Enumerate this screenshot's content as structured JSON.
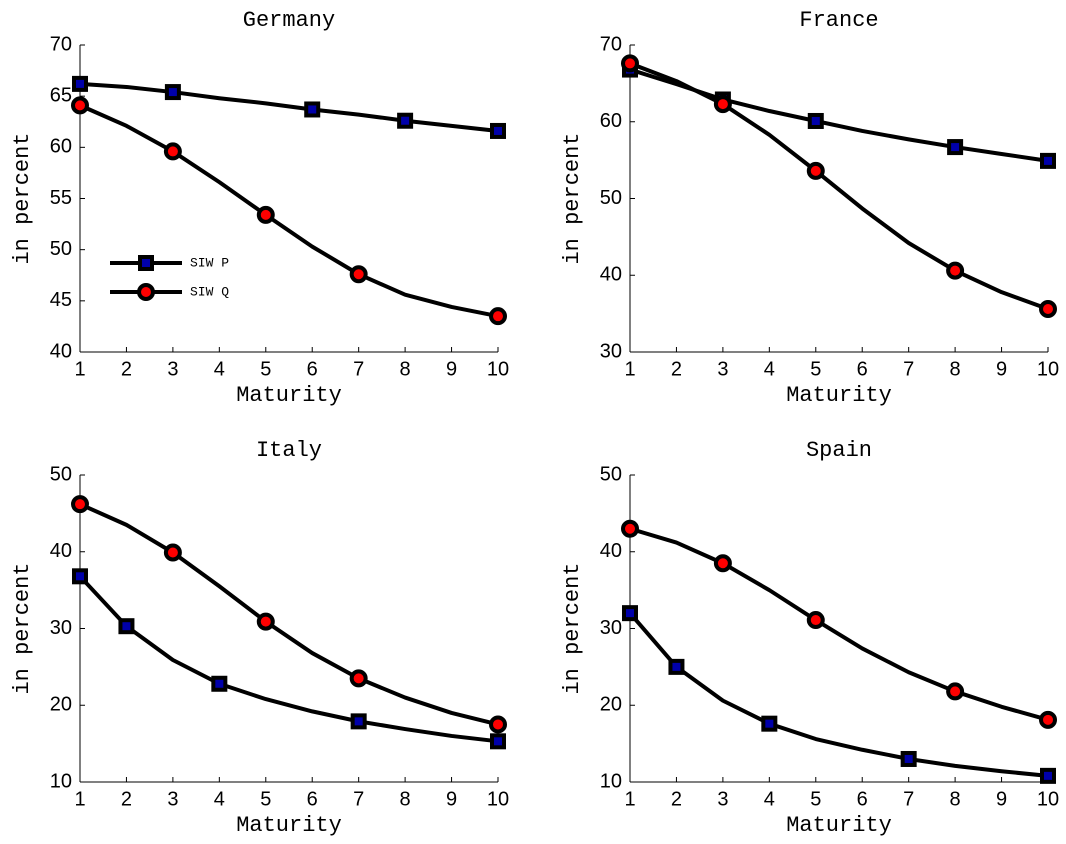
{
  "chart_data": [
    {
      "type": "line",
      "title": "Germany",
      "xlabel": "Maturity",
      "ylabel": "in percent",
      "x": [
        1,
        2,
        3,
        4,
        5,
        6,
        7,
        8,
        9,
        10
      ],
      "xlim": [
        1,
        10
      ],
      "xticks": [
        1,
        2,
        3,
        4,
        5,
        6,
        7,
        8,
        9,
        10
      ],
      "ylim": [
        40,
        70
      ],
      "yticks": [
        40,
        45,
        50,
        55,
        60,
        65,
        70
      ],
      "legend": "lower left",
      "series": [
        {
          "name": "SIW P",
          "color": "#000000",
          "marker": "square",
          "marker_face": "#0000aa",
          "markers": [
            1,
            3,
            6,
            8,
            10
          ],
          "values": [
            66.2,
            65.9,
            65.4,
            64.8,
            64.3,
            63.7,
            63.2,
            62.6,
            62.1,
            61.6
          ]
        },
        {
          "name": "SIW Q",
          "color": "#000000",
          "marker": "circle",
          "marker_face": "#ff0000",
          "markers": [
            1,
            3,
            5,
            7,
            10
          ],
          "values": [
            64.1,
            62.1,
            59.6,
            56.6,
            53.4,
            50.3,
            47.6,
            45.6,
            44.4,
            43.5
          ]
        }
      ]
    },
    {
      "type": "line",
      "title": "France",
      "xlabel": "Maturity",
      "ylabel": "in percent",
      "x": [
        1,
        2,
        3,
        4,
        5,
        6,
        7,
        8,
        9,
        10
      ],
      "xlim": [
        1,
        10
      ],
      "xticks": [
        1,
        2,
        3,
        4,
        5,
        6,
        7,
        8,
        9,
        10
      ],
      "ylim": [
        30,
        70
      ],
      "yticks": [
        30,
        40,
        50,
        60,
        70
      ],
      "series": [
        {
          "color": "#000000",
          "marker": "square",
          "marker_face": "#0000aa",
          "markers": [
            1,
            3,
            5,
            8,
            10
          ],
          "values": [
            66.8,
            64.9,
            62.9,
            61.4,
            60.1,
            58.8,
            57.7,
            56.7,
            55.8,
            54.9
          ]
        },
        {
          "color": "#000000",
          "marker": "circle",
          "marker_face": "#ff0000",
          "markers": [
            1,
            3,
            5,
            8,
            10
          ],
          "values": [
            67.6,
            65.3,
            62.3,
            58.3,
            53.6,
            48.7,
            44.2,
            40.6,
            37.8,
            35.6
          ]
        }
      ]
    },
    {
      "type": "line",
      "title": "Italy",
      "xlabel": "Maturity",
      "ylabel": "in percent",
      "x": [
        1,
        2,
        3,
        4,
        5,
        6,
        7,
        8,
        9,
        10
      ],
      "xlim": [
        1,
        10
      ],
      "xticks": [
        1,
        2,
        3,
        4,
        5,
        6,
        7,
        8,
        9,
        10
      ],
      "ylim": [
        10,
        50
      ],
      "yticks": [
        10,
        20,
        30,
        40,
        50
      ],
      "series": [
        {
          "color": "#000000",
          "marker": "square",
          "marker_face": "#0000aa",
          "markers": [
            1,
            2,
            4,
            7,
            10
          ],
          "values": [
            36.8,
            30.3,
            25.9,
            22.8,
            20.8,
            19.2,
            17.9,
            16.9,
            16.0,
            15.3
          ]
        },
        {
          "color": "#000000",
          "marker": "circle",
          "marker_face": "#ff0000",
          "markers": [
            1,
            3,
            5,
            7,
            10
          ],
          "values": [
            46.2,
            43.5,
            39.9,
            35.5,
            30.9,
            26.8,
            23.5,
            21.0,
            19.0,
            17.5
          ]
        }
      ]
    },
    {
      "type": "line",
      "title": "Spain",
      "xlabel": "Maturity",
      "ylabel": "in percent",
      "x": [
        1,
        2,
        3,
        4,
        5,
        6,
        7,
        8,
        9,
        10
      ],
      "xlim": [
        1,
        10
      ],
      "xticks": [
        1,
        2,
        3,
        4,
        5,
        6,
        7,
        8,
        9,
        10
      ],
      "ylim": [
        10,
        50
      ],
      "yticks": [
        10,
        20,
        30,
        40,
        50
      ],
      "series": [
        {
          "color": "#000000",
          "marker": "square",
          "marker_face": "#0000aa",
          "markers": [
            1,
            2,
            4,
            7,
            10
          ],
          "values": [
            32.0,
            25.0,
            20.6,
            17.6,
            15.6,
            14.2,
            13.0,
            12.1,
            11.4,
            10.8
          ]
        },
        {
          "color": "#000000",
          "marker": "circle",
          "marker_face": "#ff0000",
          "markers": [
            1,
            3,
            5,
            8,
            10
          ],
          "values": [
            43.0,
            41.2,
            38.5,
            35.0,
            31.1,
            27.4,
            24.3,
            21.8,
            19.8,
            18.1
          ]
        }
      ]
    }
  ]
}
